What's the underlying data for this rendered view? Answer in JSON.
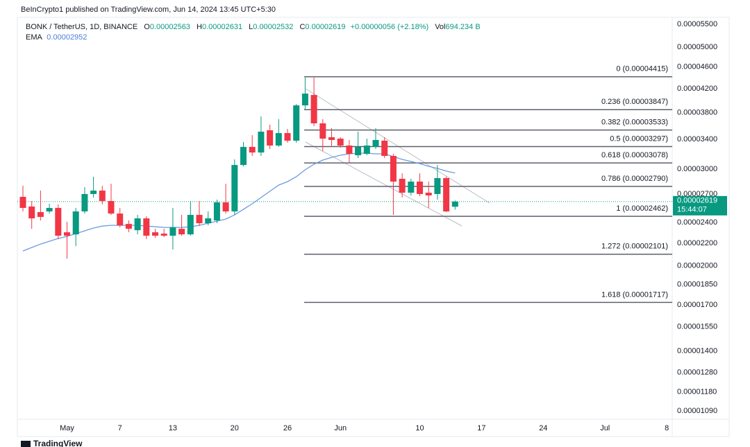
{
  "chart_data": {
    "type": "candlestick",
    "header": "BeInCrypto1 published on TradingView.com, Jun 14, 2024 13:45 UTC+5:30",
    "symbol": "BONK / TetherUS, 1D, BINANCE",
    "ohlc_legend": [
      {
        "key": "O",
        "text": "0.00002563"
      },
      {
        "key": "H",
        "text": "0.00002631"
      },
      {
        "key": "L",
        "text": "0.00002532"
      },
      {
        "key": "C",
        "text": "0.00002619"
      }
    ],
    "change": "+0.00000056 (+2.18%)",
    "volume_key": "Vol",
    "volume": "694.234 B",
    "ema_key": "EMA",
    "ema_text": "0.00002952",
    "last_price_label": "0.00002619",
    "countdown": "15:44:07",
    "watermark": "TradingView",
    "log_scale": true,
    "grid": false,
    "up_color": "#089981",
    "down_color": "#f23645",
    "ema_color": "#6a9be0",
    "categories": [
      null,
      null,
      null,
      null,
      null,
      null,
      null,
      null,
      null,
      null,
      null,
      null,
      null,
      null,
      null,
      null,
      null,
      null,
      null,
      null,
      null,
      null,
      null,
      null,
      null,
      null,
      null,
      null,
      null,
      null,
      null,
      null,
      null,
      null,
      null,
      null,
      null,
      null,
      null,
      null,
      null,
      null,
      null,
      null,
      null,
      null,
      null,
      null,
      null,
      null
    ],
    "open": [
      2.671e-05,
      2.565e-05,
      2.506e-05,
      2.513e-05,
      2.55e-05,
      2.303e-05,
      2.283e-05,
      2.513e-05,
      2.703e-05,
      2.742e-05,
      2.625e-05,
      2.491e-05,
      2.385e-05,
      2.323e-05,
      2.441e-05,
      2.303e-05,
      2.29e-05,
      2.27e-05,
      2.337e-05,
      2.283e-05,
      2.477e-05,
      2.392e-05,
      2.42e-05,
      2.61e-05,
      2.513e-05,
      3.052e-05,
      3.292e-05,
      3.216e-05,
      3.53e-05,
      3.311e-05,
      3.488e-05,
      3.379e-05,
      3.917e-05,
      4.091e-05,
      3.633e-05,
      3.428e-05,
      3.408e-05,
      3.311e-05,
      3.179e-05,
      3.198e-05,
      3.292e-05,
      3.379e-05,
      3.17e-05,
      2.881e-05,
      2.718e-05,
      2.847e-05,
      2.718e-05,
      2.703e-05,
      2.889e-05,
      2.563e-05
    ],
    "high": [
      2.798e-05,
      2.625e-05,
      2.742e-05,
      2.595e-05,
      2.588e-05,
      2.406e-05,
      2.55e-05,
      2.782e-05,
      2.906e-05,
      2.798e-05,
      2.822e-05,
      2.55e-05,
      2.42e-05,
      2.477e-05,
      2.463e-05,
      2.337e-05,
      2.337e-05,
      2.55e-05,
      2.477e-05,
      2.625e-05,
      2.625e-05,
      2.513e-05,
      2.64e-05,
      2.822e-05,
      3.124e-05,
      3.36e-05,
      3.458e-05,
      3.74e-05,
      3.612e-05,
      3.697e-05,
      3.55e-05,
      3.94e-05,
      4.4e-05,
      4.4e-05,
      3.697e-05,
      3.56e-05,
      3.428e-05,
      3.389e-05,
      3.509e-05,
      3.408e-05,
      3.56e-05,
      3.428e-05,
      3.198e-05,
      2.948e-05,
      2.881e-05,
      2.948e-05,
      2.847e-05,
      3.052e-05,
      2.906e-05,
      2.631e-05
    ],
    "low": [
      2.513e-05,
      2.337e-05,
      2.42e-05,
      2.491e-05,
      2.238e-05,
      2.063e-05,
      2.173e-05,
      2.491e-05,
      2.664e-05,
      2.588e-05,
      2.477e-05,
      2.351e-05,
      2.303e-05,
      2.283e-05,
      2.238e-05,
      2.251e-05,
      2.257e-05,
      2.142e-05,
      2.27e-05,
      2.27e-05,
      2.364e-05,
      2.371e-05,
      2.392e-05,
      2.491e-05,
      2.477e-05,
      3.035e-05,
      3.17e-05,
      3.17e-05,
      3.263e-05,
      3.292e-05,
      3.35e-05,
      3.35e-05,
      3.85e-05,
      3.591e-05,
      3.235e-05,
      3.292e-05,
      3.282e-05,
      3.079e-05,
      3.142e-05,
      3.179e-05,
      3.263e-05,
      3.142e-05,
      2.477e-05,
      2.664e-05,
      2.687e-05,
      2.679e-05,
      2.55e-05,
      2.64e-05,
      2.506e-05,
      2.532e-05
    ],
    "close": [
      2.55e-05,
      2.441e-05,
      2.456e-05,
      2.55e-05,
      2.27e-05,
      2.27e-05,
      2.513e-05,
      2.703e-05,
      2.742e-05,
      2.625e-05,
      2.491e-05,
      2.371e-05,
      2.337e-05,
      2.441e-05,
      2.27e-05,
      2.27e-05,
      2.27e-05,
      2.351e-05,
      2.283e-05,
      2.477e-05,
      2.392e-05,
      2.441e-05,
      2.61e-05,
      2.513e-05,
      3.052e-05,
      3.292e-05,
      3.216e-05,
      3.509e-05,
      3.311e-05,
      3.488e-05,
      3.379e-05,
      3.917e-05,
      4.115e-05,
      3.633e-05,
      3.408e-05,
      3.389e-05,
      3.311e-05,
      3.198e-05,
      3.292e-05,
      3.311e-05,
      3.389e-05,
      3.17e-05,
      2.847e-05,
      2.718e-05,
      2.847e-05,
      2.703e-05,
      2.687e-05,
      2.889e-05,
      2.513e-05,
      2.619e-05
    ],
    "ema": [
      2.13e-05,
      2.161e-05,
      2.192e-05,
      2.218e-05,
      2.244e-05,
      2.264e-05,
      2.29e-05,
      2.317e-05,
      2.344e-05,
      2.364e-05,
      2.371e-05,
      2.371e-05,
      2.371e-05,
      2.371e-05,
      2.364e-05,
      2.357e-05,
      2.351e-05,
      2.351e-05,
      2.351e-05,
      2.357e-05,
      2.371e-05,
      2.392e-05,
      2.413e-05,
      2.434e-05,
      2.477e-05,
      2.535e-05,
      2.595e-05,
      2.664e-05,
      2.734e-05,
      2.806e-05,
      2.847e-05,
      2.906e-05,
      2.991e-05,
      3.061e-05,
      3.115e-05,
      3.151e-05,
      3.179e-05,
      3.198e-05,
      3.207e-05,
      3.207e-05,
      3.198e-05,
      3.198e-05,
      3.161e-05,
      3.124e-05,
      3.097e-05,
      3.07e-05,
      3.035e-05,
      3.009e-05,
      2.975e-05,
      2.952e-05
    ],
    "fib_levels": [
      {
        "label": "0 (0.00004415)",
        "value": 4.415e-05
      },
      {
        "label": "0.236 (0.00003847)",
        "value": 3.847e-05
      },
      {
        "label": "0.382 (0.00003533)",
        "value": 3.533e-05
      },
      {
        "label": "0.5 (0.00003297)",
        "value": 3.297e-05
      },
      {
        "label": "0.618 (0.00003078)",
        "value": 3.078e-05
      },
      {
        "label": "0.786 (0.00002790)",
        "value": 2.79e-05
      },
      {
        "label": "1 (0.00002462)",
        "value": 2.462e-05
      },
      {
        "label": "1.272 (0.00002101)",
        "value": 2.101e-05
      },
      {
        "label": "1.618 (0.00001717)",
        "value": 1.717e-05
      }
    ],
    "xlim": [
      -0.63,
      73.62
    ],
    "xticks": [
      {
        "value": 5,
        "label": "May"
      },
      {
        "value": 11,
        "label": "7"
      },
      {
        "value": 17,
        "label": "13"
      },
      {
        "value": 24,
        "label": "20"
      },
      {
        "value": 30,
        "label": "26"
      },
      {
        "value": 36,
        "label": "Jun"
      },
      {
        "value": 45,
        "label": "10"
      },
      {
        "value": 52,
        "label": "17"
      },
      {
        "value": 59,
        "label": "24"
      },
      {
        "value": 66,
        "label": "Jul"
      },
      {
        "value": 73,
        "label": "8"
      }
    ],
    "ylim": [
      1.053e-05,
      5.662e-05
    ],
    "yticks": [
      {
        "value": 5.5e-05,
        "label": "0.00005500"
      },
      {
        "value": 5e-05,
        "label": "0.00005000"
      },
      {
        "value": 4.6e-05,
        "label": "0.00004600"
      },
      {
        "value": 4.2e-05,
        "label": "0.00004200"
      },
      {
        "value": 3.8e-05,
        "label": "0.00003800"
      },
      {
        "value": 3.4e-05,
        "label": "0.00003400"
      },
      {
        "value": 3e-05,
        "label": "0.00003000"
      },
      {
        "value": 2.7e-05,
        "label": "0.00002700"
      },
      {
        "value": 2.4e-05,
        "label": "0.00002400"
      },
      {
        "value": 2.2e-05,
        "label": "0.00002200"
      },
      {
        "value": 2e-05,
        "label": "0.00002000"
      },
      {
        "value": 1.85e-05,
        "label": "0.00001850"
      },
      {
        "value": 1.7e-05,
        "label": "0.00001700"
      },
      {
        "value": 1.55e-05,
        "label": "0.00001550"
      },
      {
        "value": 1.4e-05,
        "label": "0.00001400"
      },
      {
        "value": 1.28e-05,
        "label": "0.00001280"
      },
      {
        "value": 1.18e-05,
        "label": "0.00001180"
      },
      {
        "value": 1.09e-05,
        "label": "0.00001090"
      }
    ]
  }
}
